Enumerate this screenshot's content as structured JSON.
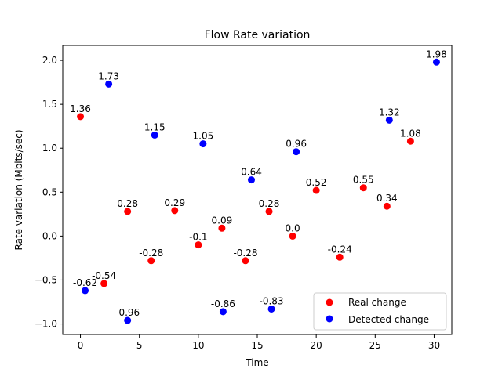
{
  "chart_data": {
    "type": "scatter",
    "title": "Flow Rate variation",
    "xlabel": "Time",
    "ylabel": "Rate variation (Mbits/sec)",
    "xlim": [
      -1.5,
      31.5
    ],
    "ylim": [
      -1.12,
      2.17
    ],
    "xticks": [
      0,
      5,
      10,
      15,
      20,
      25,
      30
    ],
    "yticks": [
      -1.0,
      -0.5,
      0.0,
      0.5,
      1.0,
      1.5,
      2.0
    ],
    "xtick_labels": [
      "0",
      "5",
      "10",
      "15",
      "20",
      "25",
      "30"
    ],
    "ytick_labels": [
      "−1.0",
      "−0.5",
      "0.0",
      "0.5",
      "1.0",
      "1.5",
      "2.0"
    ],
    "grid": false,
    "legend_position": "bottom-right",
    "series": [
      {
        "name": "Real change",
        "color": "#ff0000",
        "points": [
          {
            "x": 0,
            "y": 1.36,
            "label": "1.36"
          },
          {
            "x": 2,
            "y": -0.54,
            "label": "-0.54"
          },
          {
            "x": 4,
            "y": 0.28,
            "label": "0.28"
          },
          {
            "x": 6,
            "y": -0.28,
            "label": "-0.28"
          },
          {
            "x": 8,
            "y": 0.29,
            "label": "0.29"
          },
          {
            "x": 10,
            "y": -0.1,
            "label": "-0.1"
          },
          {
            "x": 12,
            "y": 0.09,
            "label": "0.09"
          },
          {
            "x": 14,
            "y": -0.28,
            "label": "-0.28"
          },
          {
            "x": 16,
            "y": 0.28,
            "label": "0.28"
          },
          {
            "x": 18,
            "y": 0.0,
            "label": "0.0"
          },
          {
            "x": 20,
            "y": 0.52,
            "label": "0.52"
          },
          {
            "x": 22,
            "y": -0.24,
            "label": "-0.24"
          },
          {
            "x": 24,
            "y": 0.55,
            "label": "0.55"
          },
          {
            "x": 26,
            "y": 0.34,
            "label": "0.34"
          },
          {
            "x": 28,
            "y": 1.08,
            "label": "1.08"
          }
        ]
      },
      {
        "name": "Detected change",
        "color": "#0000ff",
        "points": [
          {
            "x": 0.4,
            "y": -0.62,
            "label": "-0.62"
          },
          {
            "x": 2.4,
            "y": 1.73,
            "label": "1.73"
          },
          {
            "x": 4.0,
            "y": -0.96,
            "label": "-0.96"
          },
          {
            "x": 6.3,
            "y": 1.15,
            "label": "1.15"
          },
          {
            "x": 10.4,
            "y": 1.05,
            "label": "1.05"
          },
          {
            "x": 12.1,
            "y": -0.86,
            "label": "-0.86"
          },
          {
            "x": 14.5,
            "y": 0.64,
            "label": "0.64"
          },
          {
            "x": 16.2,
            "y": -0.83,
            "label": "-0.83"
          },
          {
            "x": 18.3,
            "y": 0.96,
            "label": "0.96"
          },
          {
            "x": 26.2,
            "y": 1.32,
            "label": "1.32"
          },
          {
            "x": 30.2,
            "y": 1.98,
            "label": "1.98"
          }
        ]
      }
    ]
  }
}
